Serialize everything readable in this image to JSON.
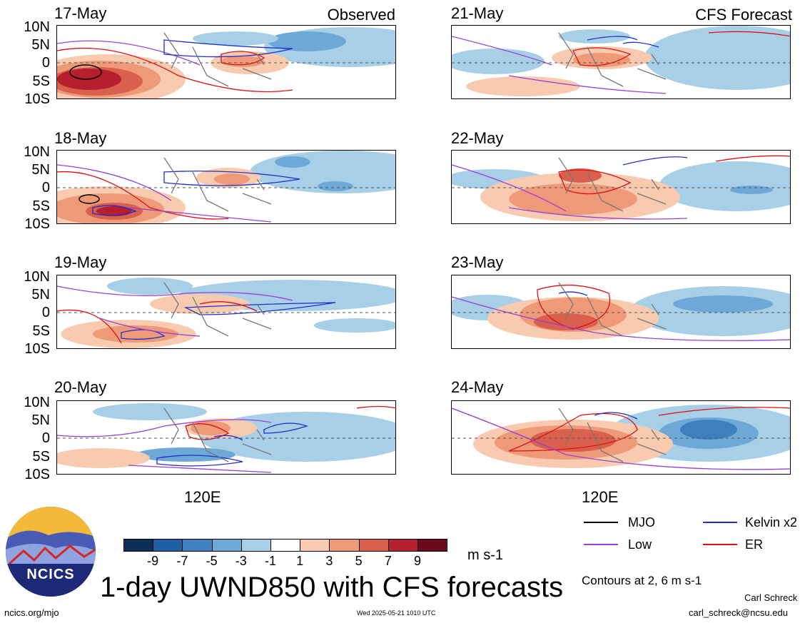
{
  "panels": [
    {
      "date": "17-May",
      "corner": "Observed"
    },
    {
      "date": "18-May",
      "corner": ""
    },
    {
      "date": "19-May",
      "corner": ""
    },
    {
      "date": "20-May",
      "corner": ""
    },
    {
      "date": "21-May",
      "corner": "CFS Forecast"
    },
    {
      "date": "22-May",
      "corner": ""
    },
    {
      "date": "23-May",
      "corner": ""
    },
    {
      "date": "24-May",
      "corner": ""
    }
  ],
  "y_labels": [
    "10N",
    "5N",
    "0",
    "5S",
    "10S"
  ],
  "x_label": "120E",
  "colorbar": {
    "ticks": [
      "-9",
      "-7",
      "-5",
      "-3",
      "-1",
      "1",
      "3",
      "5",
      "7",
      "9"
    ],
    "colors": [
      "#0d2e55",
      "#1f5fa6",
      "#3d7fbf",
      "#6ea8d6",
      "#a8cfe8",
      "#ffffff",
      "#f8cbb0",
      "#ee9a78",
      "#d9604c",
      "#b51f2e",
      "#6b0a1c"
    ],
    "units": "m s-1"
  },
  "legend": {
    "items": [
      {
        "label": "MJO",
        "color": "#000000"
      },
      {
        "label": "Kelvin x2",
        "color": "#1f2fcc"
      },
      {
        "label": "Low",
        "color": "#9a3fd6"
      },
      {
        "label": "ER",
        "color": "#e01010"
      }
    ],
    "contours_note": "Contours at 2, 6 m s-1"
  },
  "title": "1-day UWND850 with CFS forecasts",
  "logo_text": "NCICS",
  "footer": {
    "url": "ncics.org/mjo",
    "timestamp": "Wed 2025-05-21 1010 UTC",
    "author": "Carl Schreck",
    "email": "carl_schreck@ncsu.edu"
  }
}
